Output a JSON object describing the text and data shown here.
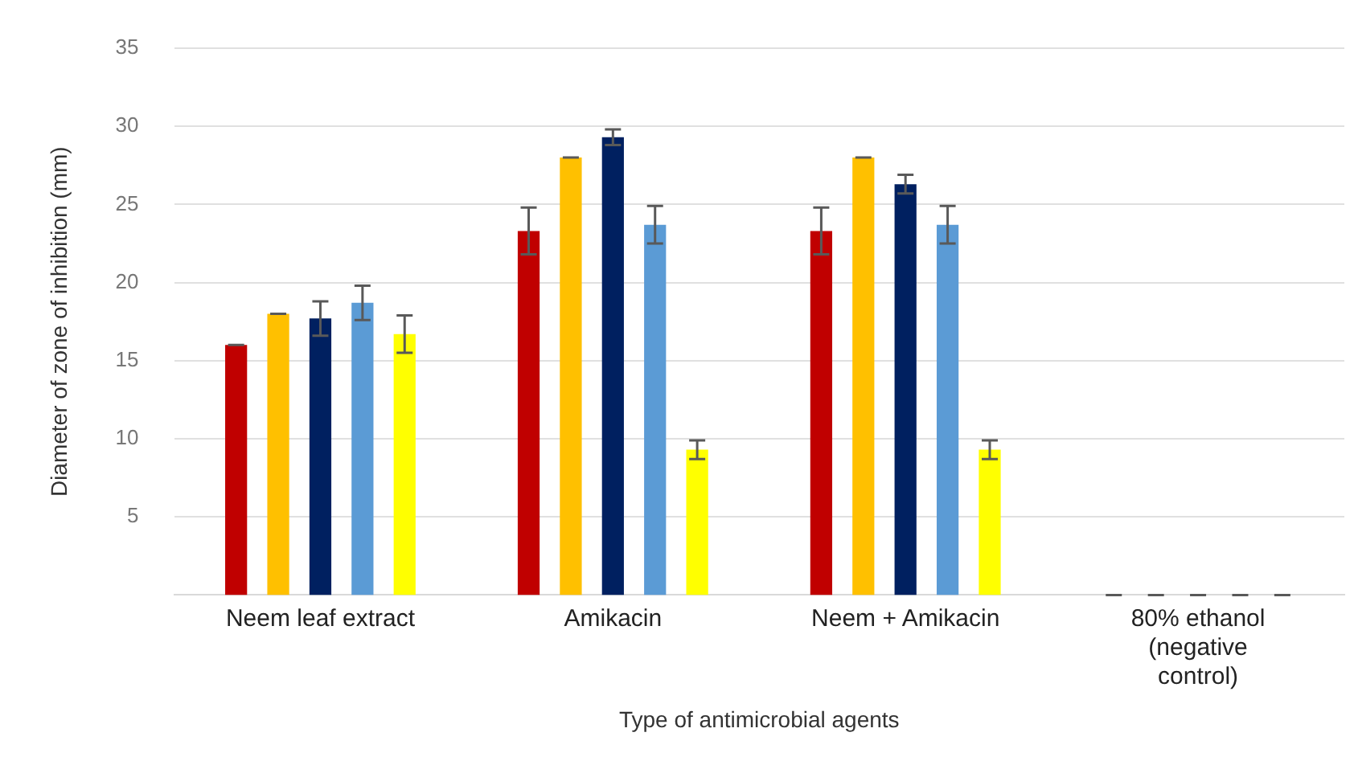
{
  "chart_data": {
    "type": "bar",
    "xlabel": "Type of antimicrobial agents",
    "ylabel": "Diameter of zone of inhibition (mm)",
    "categories": [
      "Neem leaf extract",
      "Amikacin",
      "Neem + Amikacin",
      "80% ethanol (negative control)"
    ],
    "series": [
      {
        "color": "#c00000",
        "values": [
          16,
          23.3,
          23.3,
          0
        ],
        "errors": [
          0,
          1.5,
          1.5,
          0
        ]
      },
      {
        "color": "#ffc000",
        "values": [
          18,
          28,
          28,
          0
        ],
        "errors": [
          0,
          0,
          0,
          0
        ]
      },
      {
        "color": "#002060",
        "values": [
          17.7,
          29.3,
          26.3,
          0
        ],
        "errors": [
          1.1,
          0.5,
          0.6,
          0
        ]
      },
      {
        "color": "#5b9bd5",
        "values": [
          18.7,
          23.7,
          23.7,
          0
        ],
        "errors": [
          1.1,
          1.2,
          1.2,
          0
        ]
      },
      {
        "color": "#ffff00",
        "values": [
          16.7,
          9.3,
          9.3,
          0
        ],
        "errors": [
          1.2,
          0.6,
          0.6,
          0
        ]
      }
    ],
    "ylim": [
      0,
      35
    ],
    "yticks": [
      5,
      10,
      15,
      20,
      25,
      30,
      35
    ],
    "grid": "y",
    "legend": false
  }
}
